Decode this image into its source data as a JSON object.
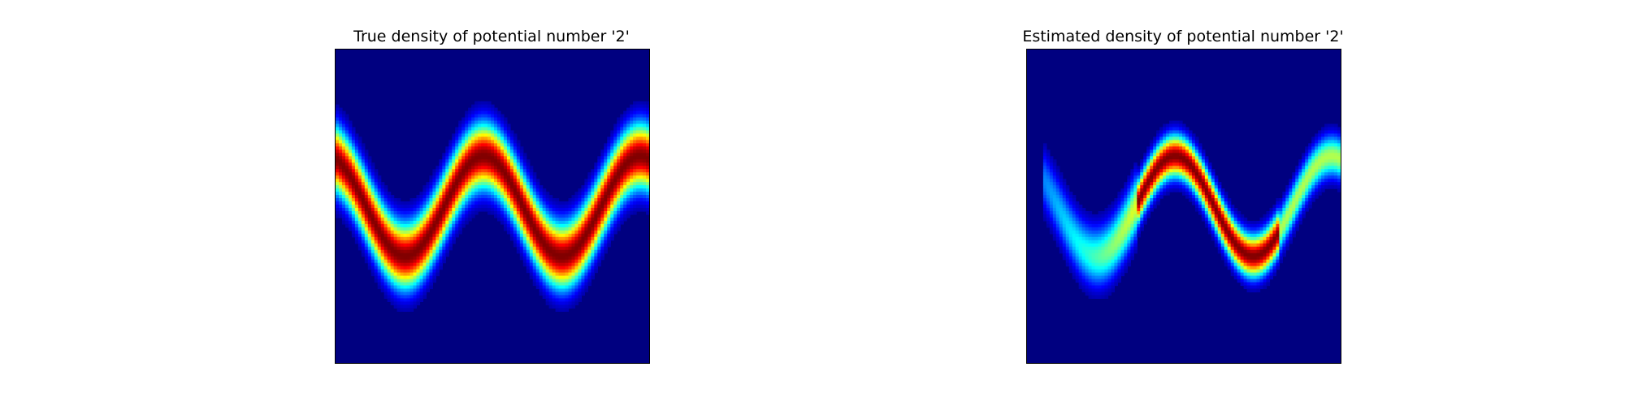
{
  "chart_data": [
    {
      "type": "heatmap",
      "title": "True density of potential number '2'",
      "colormap": "jet",
      "background_color": "#000080",
      "axes_visible": false,
      "density": {
        "curve": "sine",
        "periods": 2,
        "amplitude": 0.16,
        "phase_shift": 0.5,
        "center": 0.5,
        "band_width": 0.07,
        "peak_intensity": 1.0
      }
    },
    {
      "type": "heatmap",
      "title": "Estimated density of potential number '2'",
      "colormap": "jet",
      "background_color": "#000080",
      "axes_visible": false,
      "density": {
        "curve": "sine",
        "periods": 2,
        "amplitude": 0.16,
        "phase_shift": 0.5,
        "center": 0.5,
        "band_width": 0.045,
        "peak_intensity": 1.0,
        "x_coverage": [
          0.05,
          1.0
        ],
        "weak_region": [
          0.0,
          0.35
        ]
      }
    }
  ]
}
